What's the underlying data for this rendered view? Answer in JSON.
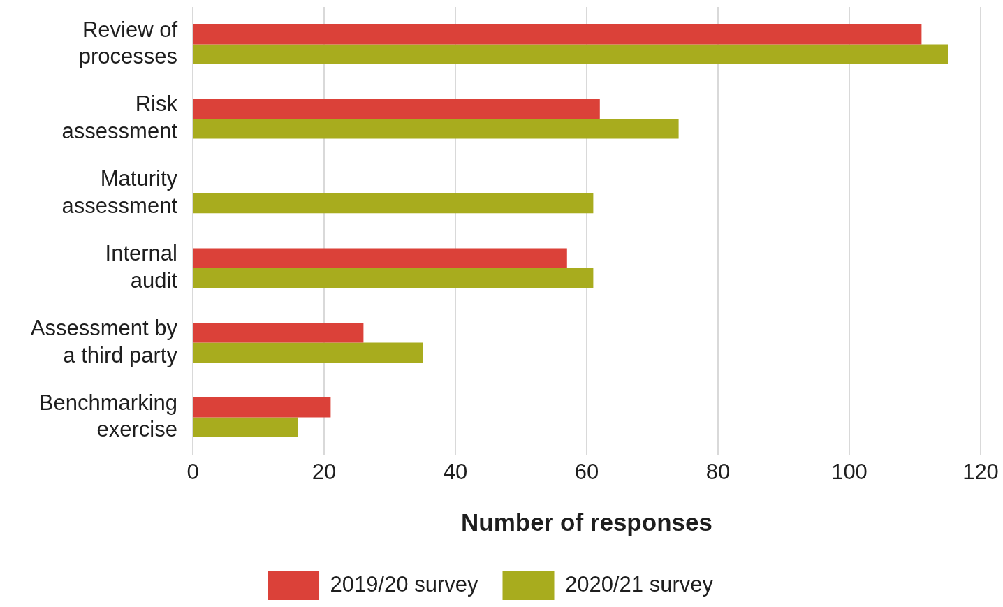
{
  "chart_data": {
    "type": "bar",
    "orientation": "horizontal",
    "categories": [
      "Review of processes",
      "Risk assessment",
      "Maturity assessment",
      "Internal audit",
      "Assessment by a third party",
      "Benchmarking exercise"
    ],
    "series": [
      {
        "name": "2019/20 survey",
        "color": "#db4139",
        "values": [
          111,
          62,
          null,
          57,
          26,
          21
        ]
      },
      {
        "name": "2020/21 survey",
        "color": "#a8ac1e",
        "values": [
          115,
          74,
          61,
          61,
          35,
          16
        ]
      }
    ],
    "xlabel": "Number of responses",
    "xlim": [
      0,
      120
    ],
    "xticks": [
      0,
      20,
      40,
      60,
      80,
      100,
      120
    ],
    "grid": "x",
    "legend": "bottom"
  }
}
